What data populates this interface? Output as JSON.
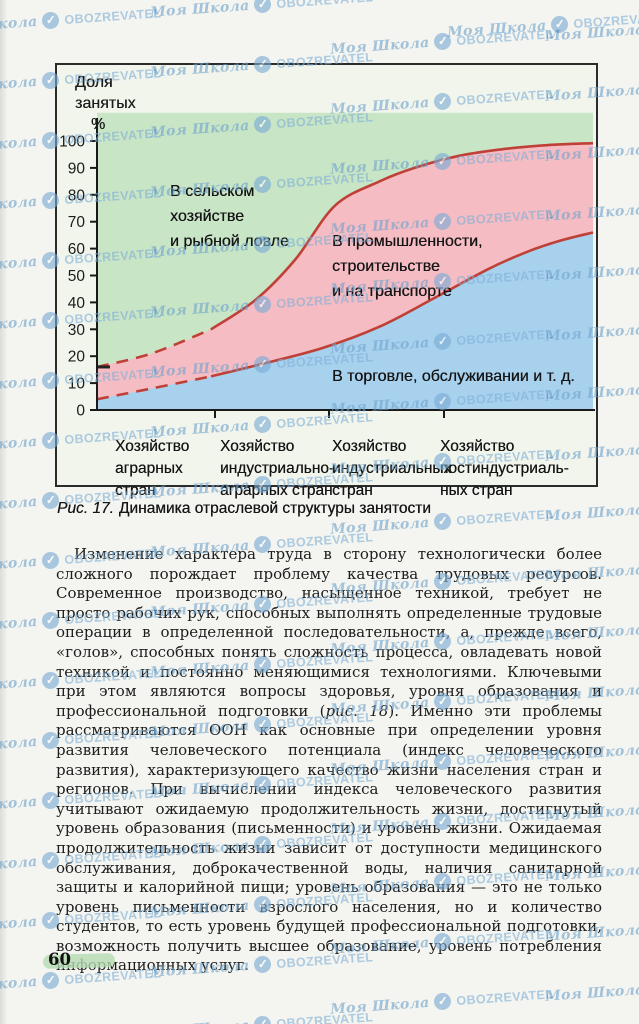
{
  "page": {
    "number": "60"
  },
  "watermark": {
    "brand_script": "Моя Школа",
    "brand_caps": "OBOZREVATEL",
    "logo_glyph": "✓",
    "color": "#7fb0d6"
  },
  "figure": {
    "caption_prefix": "Рис. 17.",
    "caption_text": "Динамика отраслевой структуры занятости"
  },
  "chart_data": {
    "type": "area",
    "title": "Динамика отраслевой структуры занятости",
    "ylabel_lines": [
      "Доля",
      "занятых",
      "%"
    ],
    "ylim": [
      0,
      100
    ],
    "y_ticks": [
      100,
      90,
      80,
      70,
      60,
      50,
      40,
      30,
      20,
      10,
      0
    ],
    "grid": false,
    "x_categories": [
      [
        "Хозяйство",
        "аграрных",
        "стран"
      ],
      [
        "Хозяйство",
        "индустриально-",
        "аграрных стран"
      ],
      [
        "Хозяйство",
        "индустриальных",
        "стран"
      ],
      [
        "Хозяйство",
        "постиндустриаль-",
        "ных стран"
      ]
    ],
    "region_labels": [
      {
        "name": "agriculture",
        "lines": [
          "В сельском",
          "хозяйстве",
          "и рыбной ловле"
        ]
      },
      {
        "name": "industry",
        "lines": [
          "В промышленности,",
          "строительстве",
          "и на транспорте"
        ]
      },
      {
        "name": "services",
        "lines": [
          "В торговле, обслуживании и т. д."
        ]
      }
    ],
    "series": [
      {
        "name": "boundary-agriculture-industry",
        "x_frac": [
          0,
          0.11,
          0.23,
          0.32,
          0.4,
          0.48,
          0.57,
          0.64,
          0.73,
          0.82,
          0.91,
          1.0
        ],
        "y_pct": [
          16,
          21,
          30,
          41,
          56,
          76,
          85,
          90,
          94.5,
          97,
          98.5,
          99.2
        ],
        "dash_points": 3
      },
      {
        "name": "boundary-industry-services",
        "x_frac": [
          0,
          0.11,
          0.23,
          0.33,
          0.454,
          0.57,
          0.684,
          0.79,
          0.87,
          0.935,
          1.0
        ],
        "y_pct": [
          4,
          8,
          12.5,
          17,
          23,
          31,
          42,
          52.5,
          59,
          63,
          66
        ],
        "dash_points": 3
      }
    ],
    "colors": {
      "agriculture": "#c8e5c6",
      "industry": "#f5bcc3",
      "services": "#a8d1ee",
      "line": "#bf4036",
      "axis": "#1a1a1a"
    }
  },
  "body": {
    "paragraph_segments": [
      {
        "italic": false,
        "text": "Изменение характера труда в сторону технологически более сложного порождает проблему качества трудовых ресурсов. Современное производство, насыщенное техникой, требует не просто рабочих рук, способных выполнять определенные трудовые операции в определенной последовательности, а, прежде всего, «голов», способных понять сложность процесса, овладевать новой техникой и постоянно меняющимися технологиями. Ключевыми при этом являются вопросы здоровья, уровня образования и профессиональной подготовки ("
      },
      {
        "italic": true,
        "text": "рис. 18"
      },
      {
        "italic": false,
        "text": "). Именно эти проблемы рассматриваются ООН как основные при определении уровня развития человеческого потенциала (индекс человеческого развития), характеризующего качество жизни населения стран и регионов. При вычислении индекса человеческого развития учитывают ожидаемую продолжительность жизни, достигнутый уровень образования (письменности) и уровень жизни. Ожидаемая продолжительность жизни зависит от доступности медицинского обслуживания, доброкачественной воды, наличия санитарной защиты и калорийной пищи; уровень образования — это не только уровень письменности взрослого населения, но и количество студентов, то есть уровень будущей профессиональной подготовки, возможность получить высшее образование, уровень потребления информационных услуг."
      }
    ]
  }
}
